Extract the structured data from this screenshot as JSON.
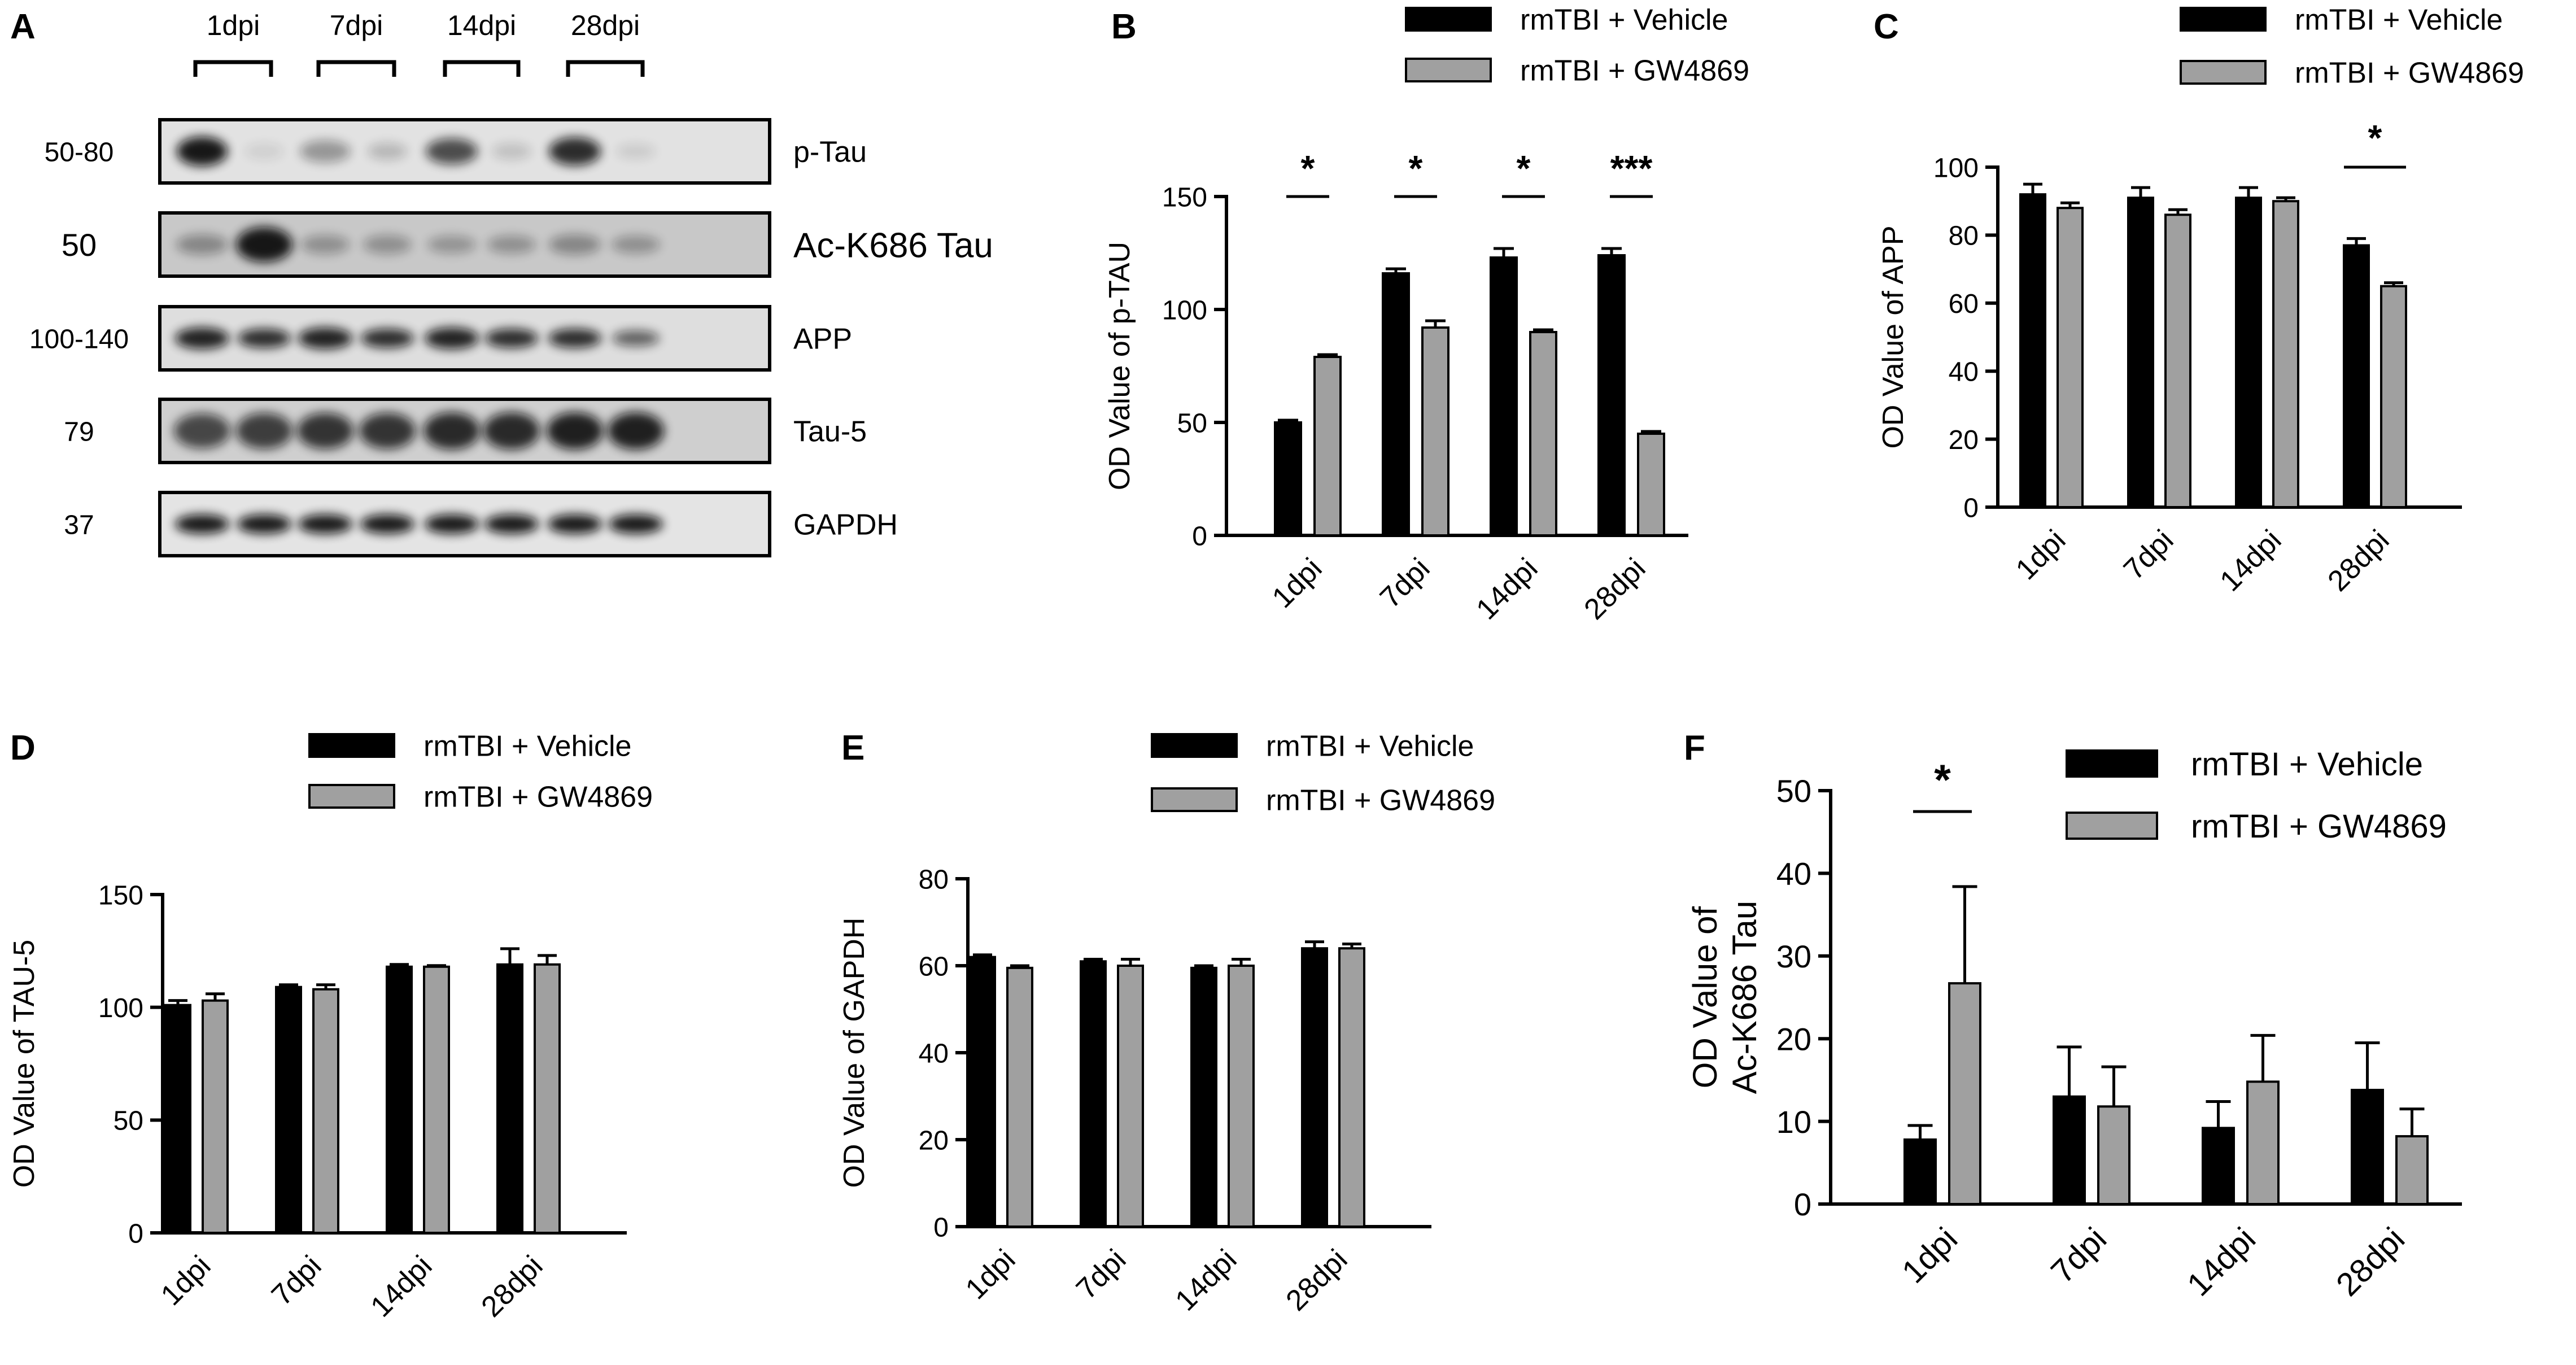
{
  "legend": {
    "vehicle": "rmTBI + Vehicle",
    "gw": "rmTBI + GW4869"
  },
  "colors": {
    "vehicle": "#000000",
    "gw": "#a0a0a0"
  },
  "chart_data": [
    {
      "panel": "A",
      "type": "western-blot",
      "timepoints": [
        "1dpi",
        "7dpi",
        "14dpi",
        "28dpi"
      ],
      "rows": [
        {
          "mw": "50-80",
          "label": "p-Tau"
        },
        {
          "mw": "50",
          "label": "Ac-K686 Tau"
        },
        {
          "mw": "100-140",
          "label": "APP"
        },
        {
          "mw": "79",
          "label": "Tau-5"
        },
        {
          "mw": "37",
          "label": "GAPDH"
        }
      ]
    },
    {
      "panel": "B",
      "type": "bar",
      "ylabel": "OD Value of p-TAU",
      "ylim": [
        0,
        150
      ],
      "yticks": [
        "0",
        "50",
        "100",
        "150"
      ],
      "categories": [
        "1dpi",
        "7dpi",
        "14dpi",
        "28dpi"
      ],
      "series": [
        {
          "name": "rmTBI + Vehicle",
          "values": [
            50,
            116,
            123,
            124
          ],
          "errors": [
            1,
            2,
            4,
            3
          ]
        },
        {
          "name": "rmTBI + GW4869",
          "values": [
            79,
            92,
            90,
            45
          ],
          "errors": [
            1,
            3,
            1,
            1
          ]
        }
      ],
      "significance": [
        "*",
        "*",
        "*",
        "***"
      ],
      "legend": "top-right",
      "grid": false
    },
    {
      "panel": "C",
      "type": "bar",
      "ylabel": "OD Value of APP",
      "ylim": [
        0,
        100
      ],
      "yticks": [
        "0",
        "20",
        "40",
        "60",
        "80",
        "100"
      ],
      "categories": [
        "1dpi",
        "7dpi",
        "14dpi",
        "28dpi"
      ],
      "series": [
        {
          "name": "rmTBI + Vehicle",
          "values": [
            92,
            91,
            91,
            77
          ],
          "errors": [
            3,
            3,
            3,
            2
          ]
        },
        {
          "name": "rmTBI + GW4869",
          "values": [
            88,
            86,
            90,
            65
          ],
          "errors": [
            1.5,
            1.5,
            1,
            1
          ]
        }
      ],
      "significance": [
        "",
        "",
        "",
        "*"
      ],
      "legend": "top-right",
      "grid": false
    },
    {
      "panel": "D",
      "type": "bar",
      "ylabel": "OD Value of TAU-5",
      "ylim": [
        0,
        150
      ],
      "yticks": [
        "0",
        "50",
        "100",
        "150"
      ],
      "categories": [
        "1dpi",
        "7dpi",
        "14dpi",
        "28dpi"
      ],
      "series": [
        {
          "name": "rmTBI + Vehicle",
          "values": [
            101,
            109,
            118,
            119
          ],
          "errors": [
            2,
            1,
            1,
            7
          ]
        },
        {
          "name": "rmTBI + GW4869",
          "values": [
            103,
            108,
            118,
            119
          ],
          "errors": [
            3,
            2,
            0.5,
            4
          ]
        }
      ],
      "significance": [
        "",
        "",
        "",
        ""
      ],
      "legend": "top",
      "grid": false
    },
    {
      "panel": "E",
      "type": "bar",
      "ylabel": "OD Value of GAPDH",
      "ylim": [
        0,
        80
      ],
      "yticks": [
        "0",
        "20",
        "40",
        "60",
        "80"
      ],
      "categories": [
        "1dpi",
        "7dpi",
        "14dpi",
        "28dpi"
      ],
      "series": [
        {
          "name": "rmTBI + Vehicle",
          "values": [
            62,
            61,
            59.5,
            64
          ],
          "errors": [
            0.5,
            0.5,
            0.5,
            1.5
          ]
        },
        {
          "name": "rmTBI + GW4869",
          "values": [
            59.5,
            60,
            60,
            64
          ],
          "errors": [
            0.5,
            1.5,
            1.5,
            1
          ]
        }
      ],
      "significance": [
        "",
        "",
        "",
        ""
      ],
      "legend": "top",
      "grid": false
    },
    {
      "panel": "F",
      "type": "bar",
      "ylabel": "OD Value of Ac-K686 Tau",
      "ylim": [
        0,
        50
      ],
      "yticks": [
        "0",
        "10",
        "20",
        "30",
        "40",
        "50"
      ],
      "categories": [
        "1dpi",
        "7dpi",
        "14dpi",
        "28dpi"
      ],
      "series": [
        {
          "name": "rmTBI + Vehicle",
          "values": [
            7.8,
            13,
            9.2,
            13.8
          ],
          "errors": [
            1.7,
            6,
            3.2,
            5.7
          ]
        },
        {
          "name": "rmTBI + GW4869",
          "values": [
            26.7,
            11.8,
            14.8,
            8.2
          ],
          "errors": [
            11.7,
            4.8,
            5.6,
            3.3
          ]
        }
      ],
      "significance": [
        "*",
        "",
        "",
        ""
      ],
      "legend": "top-right",
      "grid": false
    }
  ]
}
